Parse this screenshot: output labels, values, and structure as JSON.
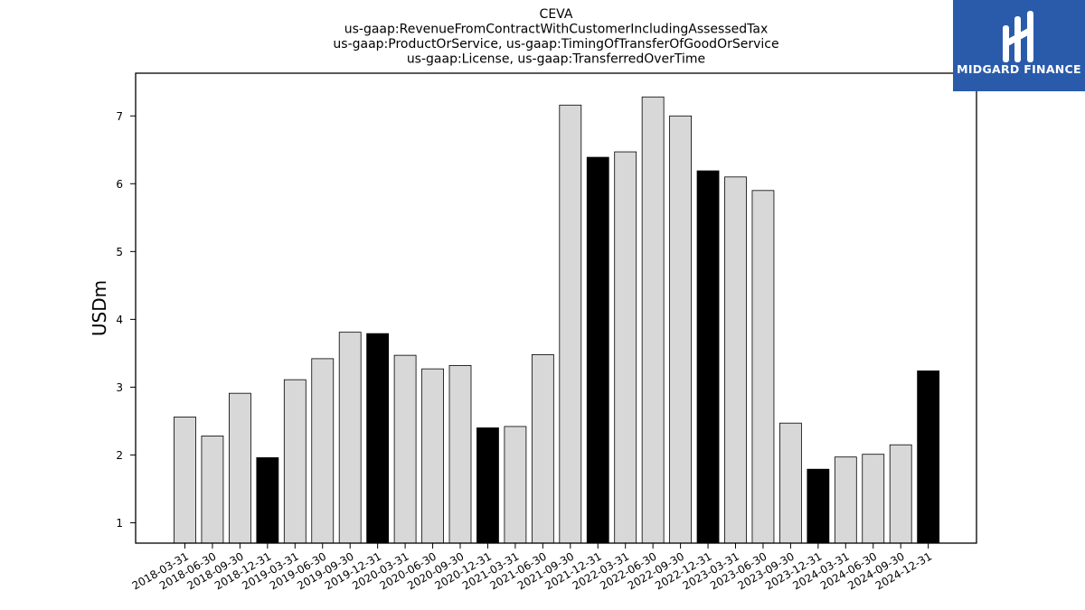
{
  "chart_data": {
    "type": "bar",
    "title_lines": [
      "CEVA",
      "us-gaap:RevenueFromContractWithCustomerIncludingAssessedTax",
      "us-gaap:ProductOrService, us-gaap:TimingOfTransferOfGoodOrService",
      "us-gaap:License, us-gaap:TransferredOverTime"
    ],
    "xlabel": "",
    "ylabel": "USDm",
    "ylim": [
      0.7,
      7.63
    ],
    "yticks": [
      1,
      2,
      3,
      4,
      5,
      6,
      7
    ],
    "grid": false,
    "categories": [
      "2018-03-31",
      "2018-06-30",
      "2018-09-30",
      "2018-12-31",
      "2019-03-31",
      "2019-06-30",
      "2019-09-30",
      "2019-12-31",
      "2020-03-31",
      "2020-06-30",
      "2020-09-30",
      "2020-12-31",
      "2021-03-31",
      "2021-06-30",
      "2021-09-30",
      "2021-12-31",
      "2022-03-31",
      "2022-06-30",
      "2022-09-30",
      "2022-12-31",
      "2023-03-31",
      "2023-06-30",
      "2023-09-30",
      "2023-12-31",
      "2024-03-31",
      "2024-06-30",
      "2024-09-30",
      "2024-12-31"
    ],
    "values": [
      2.56,
      2.28,
      2.91,
      1.96,
      3.11,
      3.42,
      3.81,
      3.79,
      3.47,
      3.27,
      3.32,
      2.4,
      2.42,
      3.48,
      7.16,
      6.39,
      6.47,
      7.28,
      7.0,
      6.19,
      6.1,
      5.9,
      2.47,
      1.79,
      1.97,
      2.01,
      2.15,
      3.24
    ],
    "bar_colors": {
      "quarter": "#d8d8d8",
      "year_end": "#000000",
      "edge": "#000000"
    }
  },
  "logo": {
    "text": "MIDGARD FINANCE",
    "background": "#2a5bab"
  }
}
